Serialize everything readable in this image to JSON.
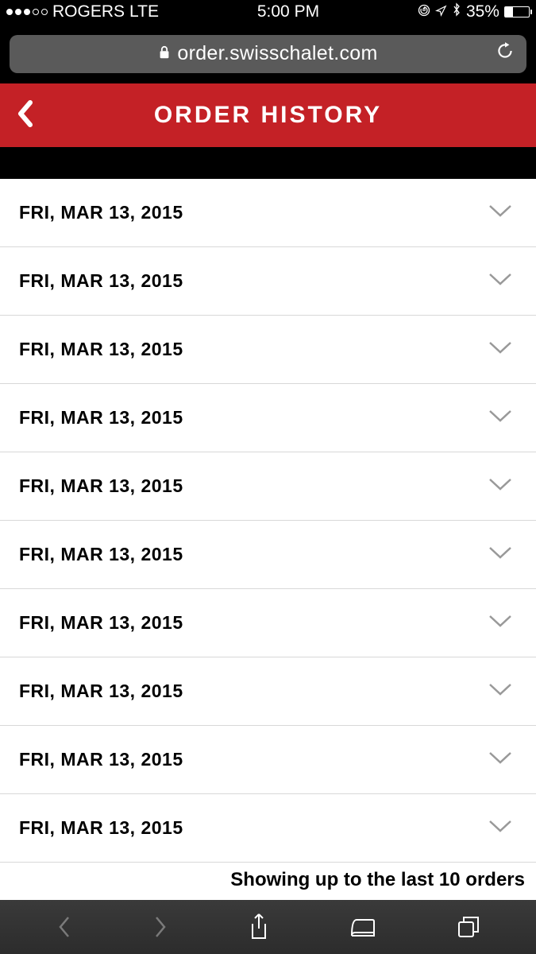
{
  "status_bar": {
    "carrier": "ROGERS",
    "network": "LTE",
    "time": "5:00 PM",
    "battery_percent": "35%",
    "signal_strength": 3
  },
  "browser": {
    "url": "order.swisschalet.com"
  },
  "header": {
    "title": "ORDER HISTORY"
  },
  "orders": [
    {
      "date": "FRI, MAR 13, 2015"
    },
    {
      "date": "FRI, MAR 13, 2015"
    },
    {
      "date": "FRI, MAR 13, 2015"
    },
    {
      "date": "FRI, MAR 13, 2015"
    },
    {
      "date": "FRI, MAR 13, 2015"
    },
    {
      "date": "FRI, MAR 13, 2015"
    },
    {
      "date": "FRI, MAR 13, 2015"
    },
    {
      "date": "FRI, MAR 13, 2015"
    },
    {
      "date": "FRI, MAR 13, 2015"
    },
    {
      "date": "FRI, MAR 13, 2015"
    }
  ],
  "footer": {
    "summary": "Showing up to the last 10 orders"
  },
  "colors": {
    "header_bg": "#c42126",
    "black": "#000000",
    "white": "#ffffff",
    "divider": "#d8d8d8",
    "url_bar_bg": "#5a5a5a",
    "chevron_gray": "#999999"
  }
}
